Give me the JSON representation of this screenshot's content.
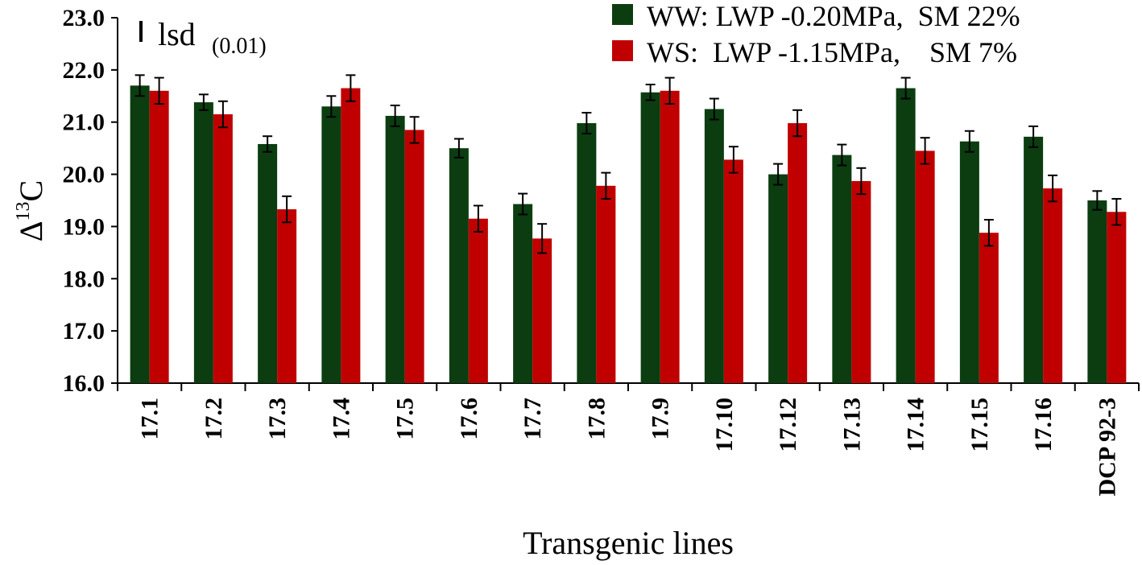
{
  "chart_data": {
    "type": "bar",
    "title": "",
    "xlabel": "Transgenic lines",
    "ylabel_main": "Δ",
    "ylabel_sup": "13",
    "ylabel_tail": "C",
    "ylim": [
      16.0,
      23.0
    ],
    "yticks": [
      "16.0",
      "17.0",
      "18.0",
      "19.0",
      "20.0",
      "21.0",
      "22.0",
      "23.0"
    ],
    "grid": false,
    "legend_position": "top-right",
    "categories": [
      "17.1",
      "17.2",
      "17.3",
      "17.4",
      "17.5",
      "17.6",
      "17.7",
      "17.8",
      "17.9",
      "17.10",
      "17.12",
      "17.13",
      "17.14",
      "17.15",
      "17.16",
      "DCP 92-3"
    ],
    "series": [
      {
        "name": "WW: LWP -0.20MPa, SM 22%",
        "color": "#0b3d11",
        "values": [
          21.7,
          21.38,
          20.58,
          21.3,
          21.12,
          20.5,
          19.43,
          20.98,
          21.57,
          21.25,
          20.0,
          20.37,
          21.65,
          20.63,
          20.72,
          19.5
        ],
        "errors": [
          0.2,
          0.15,
          0.15,
          0.2,
          0.2,
          0.18,
          0.2,
          0.2,
          0.15,
          0.2,
          0.2,
          0.2,
          0.2,
          0.2,
          0.2,
          0.18
        ]
      },
      {
        "name": "WS: LWP -1.15MPa, SM 7%",
        "color": "#c00000",
        "values": [
          21.6,
          21.15,
          19.33,
          21.65,
          20.85,
          19.15,
          18.77,
          19.78,
          21.6,
          20.28,
          20.98,
          19.87,
          20.45,
          18.88,
          19.73,
          19.28
        ],
        "errors": [
          0.25,
          0.25,
          0.25,
          0.25,
          0.25,
          0.25,
          0.28,
          0.25,
          0.25,
          0.25,
          0.25,
          0.25,
          0.25,
          0.25,
          0.25,
          0.25
        ]
      }
    ],
    "annotation": {
      "label": "lsd",
      "subscript": "(0.01)"
    },
    "legend": [
      {
        "label": "WW: LWP -0.20MPa,  SM 22%",
        "color": "#0b3d11"
      },
      {
        "label": "WS:  LWP -1.15MPa,    SM 7%",
        "color": "#c00000"
      }
    ]
  }
}
